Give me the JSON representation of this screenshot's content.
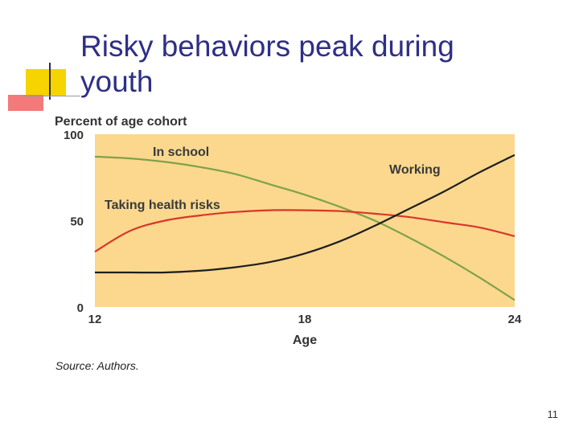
{
  "slide": {
    "title": "Risky behaviors peak during youth",
    "page_number": "11",
    "colors": {
      "title": "#2e2f86",
      "accent_yellow": "#f5d400",
      "accent_red": "#f05a5a"
    }
  },
  "chart_data": {
    "type": "line",
    "ylabel": "Percent of age cohort",
    "xlabel": "Age",
    "source": "Source: Authors.",
    "xlim": [
      12,
      24
    ],
    "ylim": [
      0,
      100
    ],
    "x_ticks": [
      12,
      18,
      24
    ],
    "y_ticks": [
      0,
      50,
      100
    ],
    "plot_background": "#fbd88e",
    "grid": false,
    "legend": "inline labels",
    "series": [
      {
        "name": "In school",
        "color": "#7fa24a",
        "x": [
          12,
          13,
          14,
          15,
          16,
          17,
          18,
          19,
          20,
          21,
          22,
          23,
          24
        ],
        "y": [
          87,
          86,
          84,
          81,
          77,
          71,
          65,
          58,
          50,
          40,
          29,
          17,
          4
        ]
      },
      {
        "name": "Taking health risks",
        "color": "#d9362b",
        "x": [
          12,
          13,
          14,
          15,
          16,
          17,
          18,
          19,
          20,
          21,
          22,
          23,
          24
        ],
        "y": [
          32,
          44,
          50,
          53,
          55,
          56,
          56,
          55.5,
          54,
          52,
          49,
          46,
          41
        ]
      },
      {
        "name": "Working",
        "color": "#1e1e1e",
        "x": [
          12,
          13,
          14,
          15,
          16,
          17,
          18,
          19,
          20,
          21,
          22,
          23,
          24
        ],
        "y": [
          20,
          20,
          20,
          21,
          23,
          26,
          31,
          38,
          47,
          57,
          67,
          78,
          88
        ]
      }
    ]
  }
}
